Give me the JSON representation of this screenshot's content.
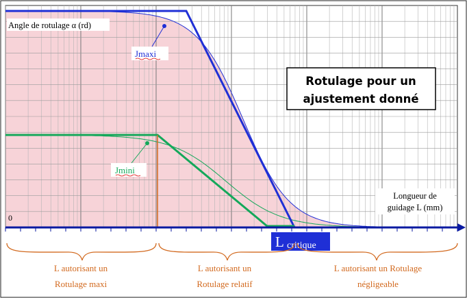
{
  "chart_data": {
    "type": "line",
    "title_line1": "Rotulage pour un",
    "title_line2": "ajustement donné",
    "ylabel": "Angle de rotulage α (rd)",
    "xlabel_line1": "Longueur de",
    "xlabel_line2": "guidage L (mm)",
    "y_zero_label": "0",
    "critical_label_main": "L",
    "critical_label_sub": "critique",
    "grid": true,
    "series": [
      {
        "name": "Jmaxi",
        "color": "#1f2fd6"
      },
      {
        "name": "Jmini",
        "color": "#14a85a"
      }
    ],
    "zones": [
      {
        "line1": "L autorisant un",
        "line2": "Rotulage maxi"
      },
      {
        "line1": "L autorisant un",
        "line2": "Rotulage relatif"
      },
      {
        "line1": "L autorisant un Rotulage",
        "line2": "négligeable"
      }
    ],
    "colors": {
      "jmaxi": "#1f2fd6",
      "jmini": "#14a85a",
      "fill": "#f7d3d8",
      "zone_text": "#d2691e",
      "critical_box": "#1f2fd6",
      "axis": "#0a1aa0"
    }
  }
}
